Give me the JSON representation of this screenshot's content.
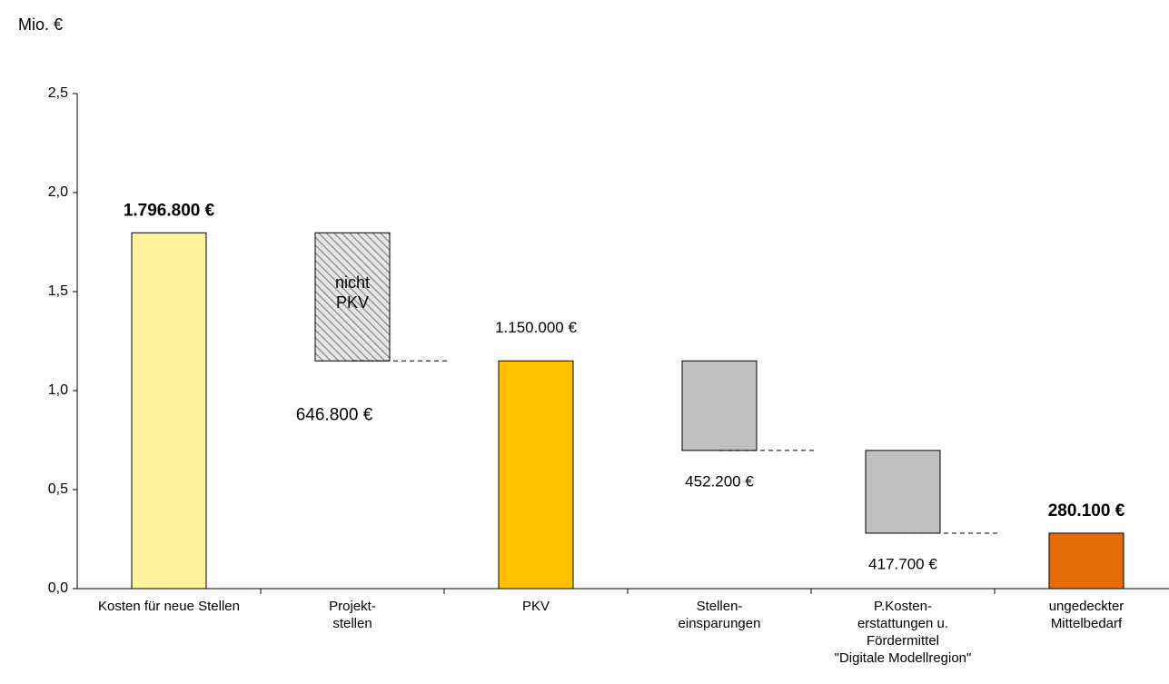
{
  "chart_data": {
    "type": "waterfall",
    "y_label": "Mio. €",
    "categories": [
      [
        "Kosten für neue Stellen"
      ],
      [
        "Projekt-",
        "stellen"
      ],
      [
        "PKV"
      ],
      [
        "Stellen-",
        "einsparungen"
      ],
      [
        "P.Kosten-",
        "erstattungen u.",
        "Fördermittel",
        "\"Digitale Modellregion\""
      ],
      [
        "ungedeckter",
        "Mittelbedarf"
      ]
    ],
    "values": [
      1.7968,
      -0.6468,
      1.15,
      -0.4522,
      -0.4177,
      0.2801
    ],
    "value_labels": [
      "1.796.800 €",
      "646.800 €",
      "1.150.000 €",
      "452.200 €",
      "417.700 €",
      "280.100 €"
    ],
    "bold_labels": [
      true,
      false,
      false,
      false,
      false,
      true
    ],
    "colors": [
      "#fff29e",
      "#d9d9d9",
      "#ffc000",
      "#c0c0c0",
      "#c0c0c0",
      "#e46c0a"
    ],
    "hatch": [
      false,
      true,
      false,
      false,
      false,
      false
    ],
    "annotation": {
      "index": 1,
      "lines": [
        "nicht",
        "PKV"
      ]
    },
    "ylim": [
      0,
      2.5
    ],
    "yticks": [
      {
        "value": 0,
        "label": "0,0"
      },
      {
        "value": 0.5,
        "label": "0,5"
      },
      {
        "value": 1,
        "label": "1,0"
      },
      {
        "value": 1.5,
        "label": "1,5"
      },
      {
        "value": 2,
        "label": "2,0"
      },
      {
        "value": 2.5,
        "label": "2,5"
      }
    ],
    "grid": false
  }
}
